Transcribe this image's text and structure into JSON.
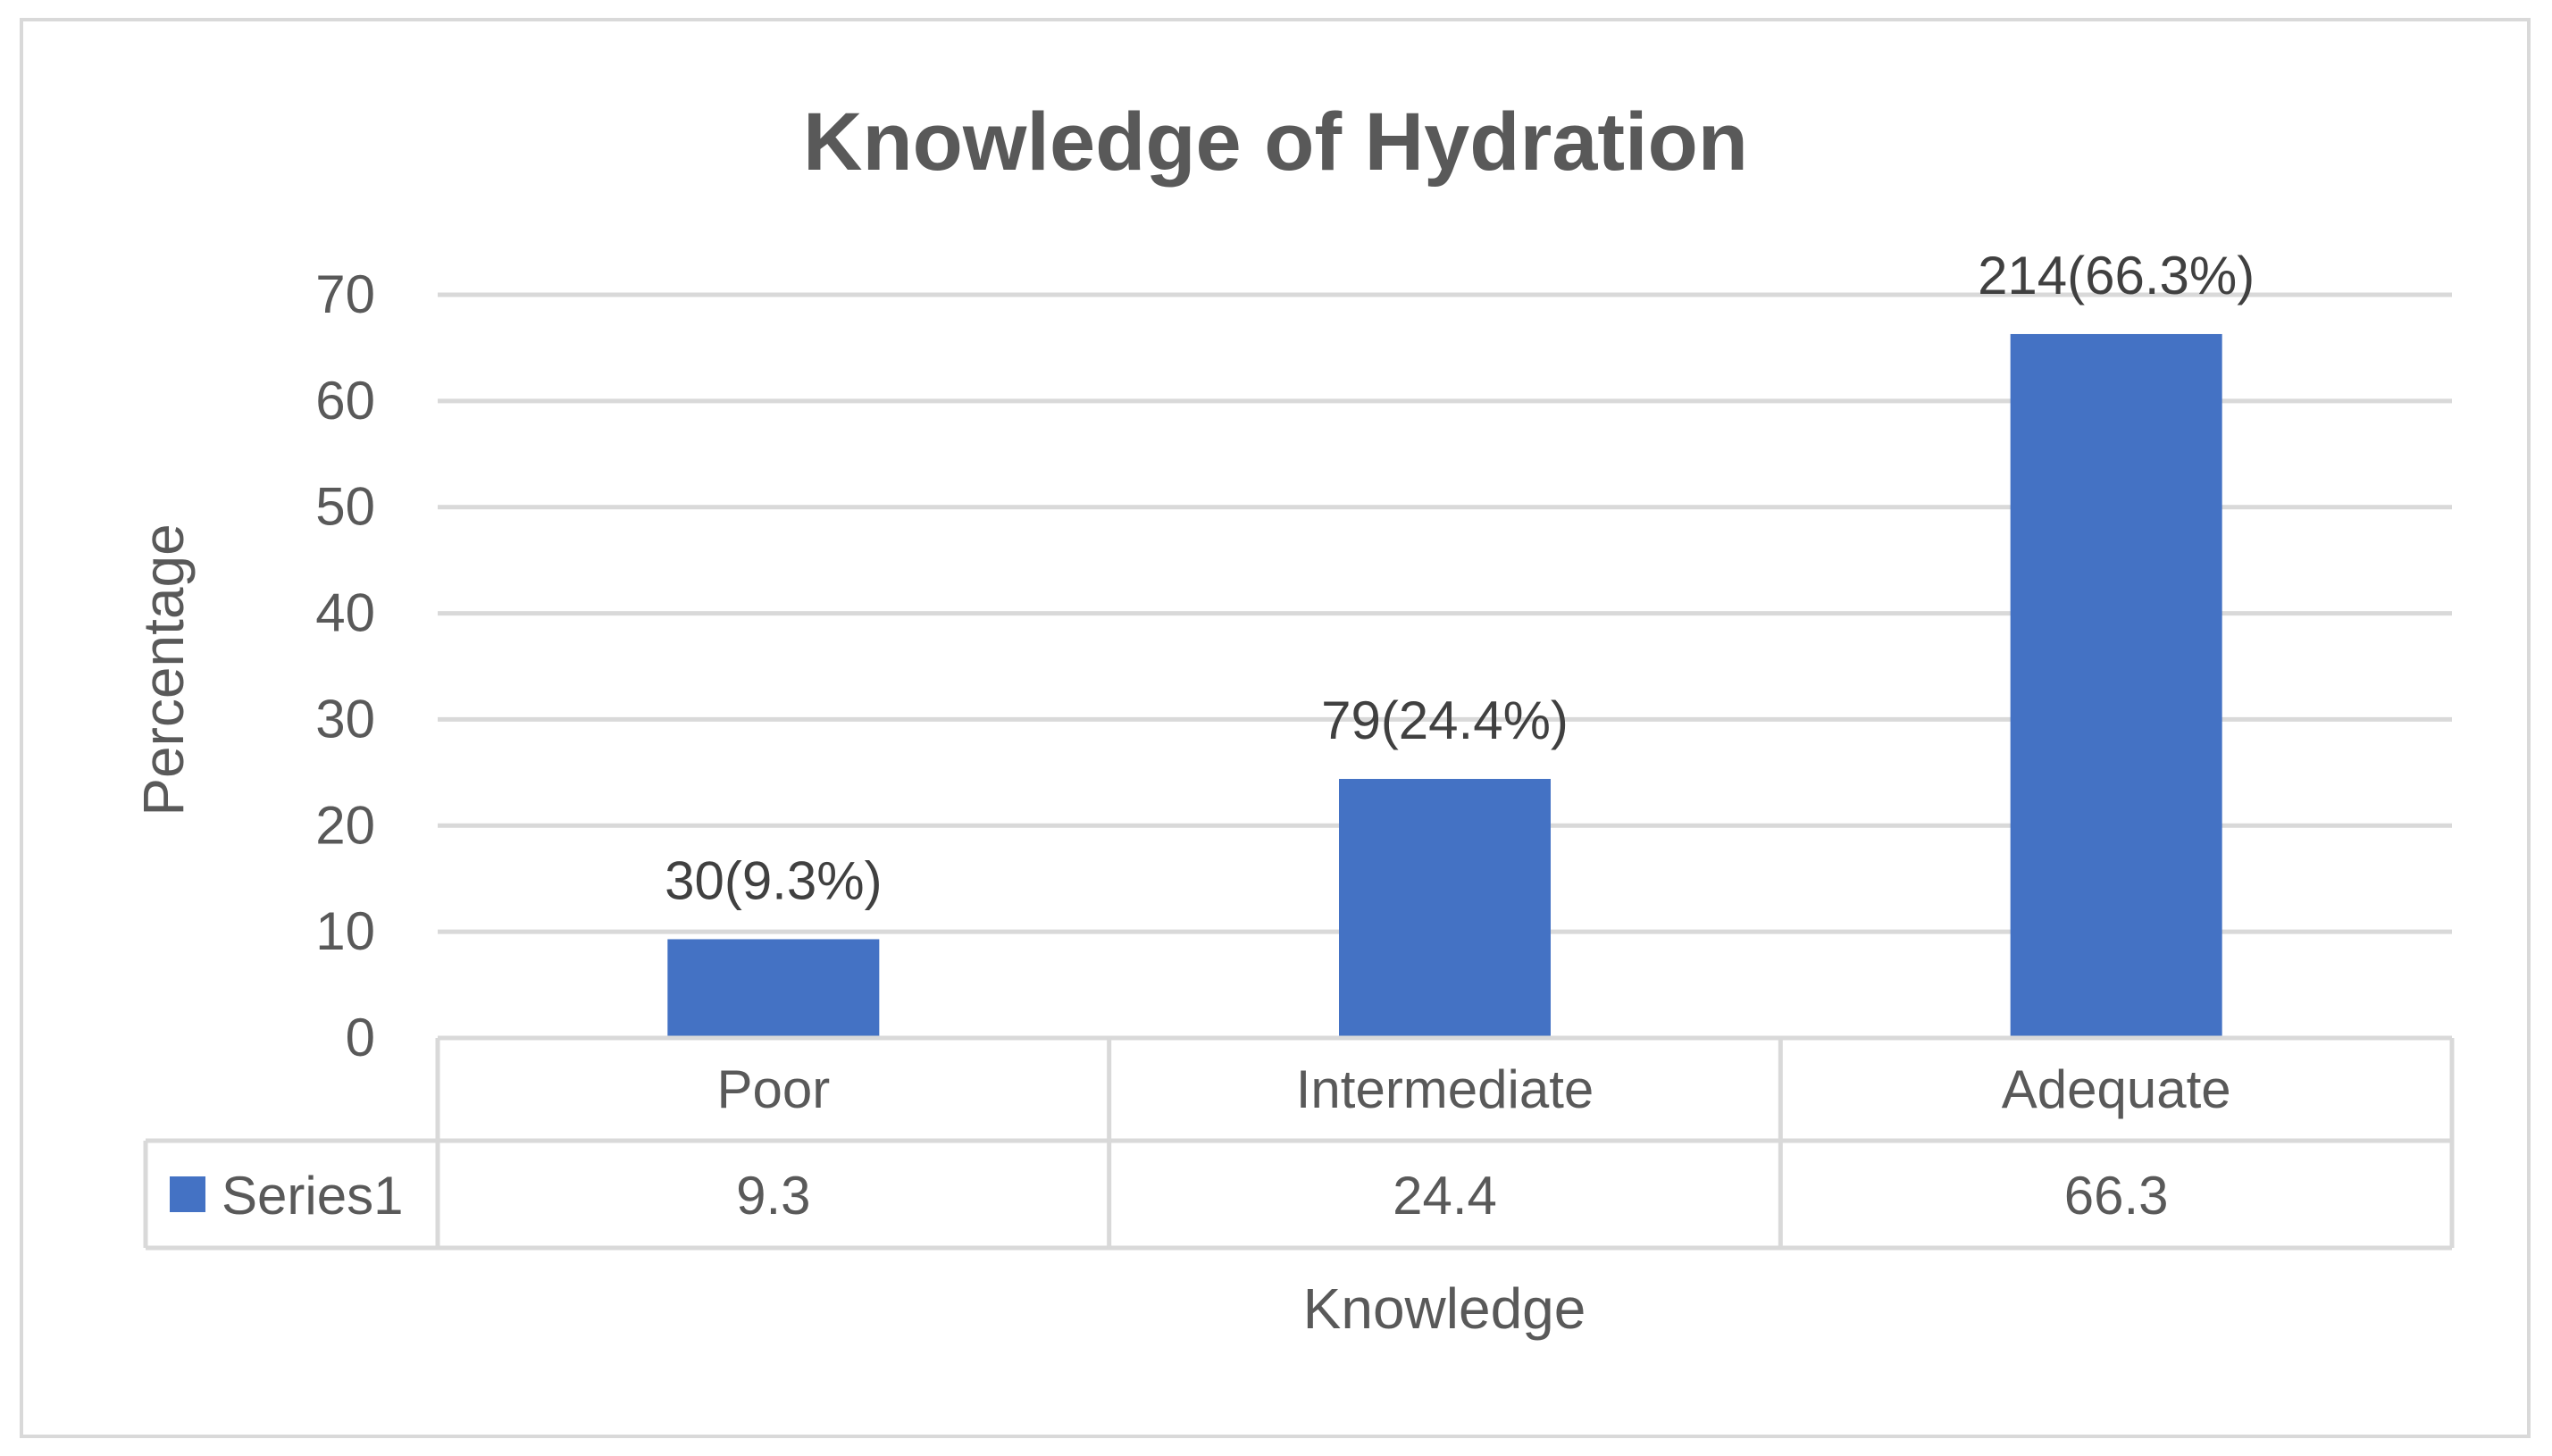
{
  "chart_data": {
    "type": "bar",
    "title": "Knowledge of Hydration",
    "xlabel": "Knowledge",
    "ylabel": "Percentage",
    "categories": [
      "Poor",
      "Intermediate",
      "Adequate"
    ],
    "series": [
      {
        "name": "Series1",
        "values": [
          9.3,
          24.4,
          66.3
        ]
      }
    ],
    "data_labels": [
      "30(9.3%)",
      "79(24.4%)",
      "214(66.3%)"
    ],
    "table_values": [
      "9.3",
      "24.4",
      "66.3"
    ],
    "ylim": [
      0,
      70
    ],
    "yticks": [
      "0",
      "10",
      "20",
      "30",
      "40",
      "50",
      "60",
      "70"
    ],
    "grid": true,
    "legend": "data-table",
    "colors": {
      "bar": "#4472c4",
      "grid": "#d9d9d9",
      "text": "#595959"
    }
  }
}
